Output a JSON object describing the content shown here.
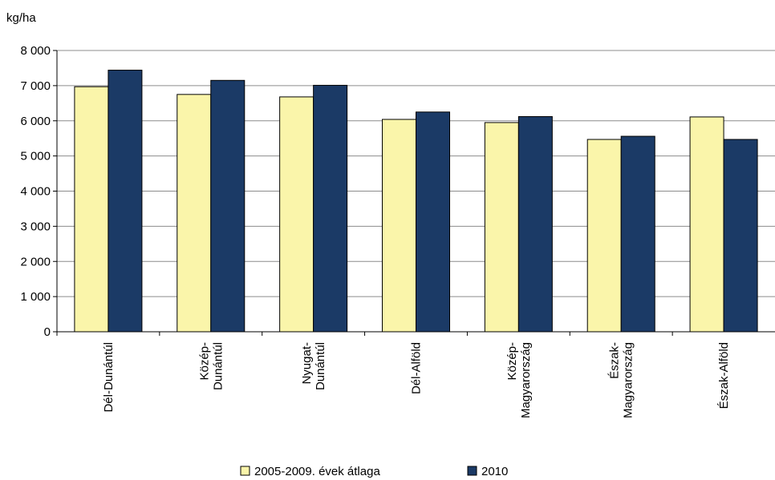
{
  "chart_data": {
    "type": "bar",
    "unit_label": "kg/ha",
    "categories": [
      [
        "Dél-Dunántúl"
      ],
      [
        "Közép-",
        "Dunántúl"
      ],
      [
        "Nyugat-",
        "Dunántúl"
      ],
      [
        "Dél-Alföld"
      ],
      [
        "Közép-",
        "Magyarország"
      ],
      [
        "Észak-",
        "Magyarország"
      ],
      [
        "Észak-Alföld"
      ]
    ],
    "series": [
      {
        "name": "2005-2009. évek átlaga",
        "color": "#FAF5AA",
        "values": [
          6970,
          6750,
          6680,
          6040,
          5950,
          5470,
          6110
        ]
      },
      {
        "name": "2010",
        "color": "#1B3A66",
        "values": [
          7440,
          7150,
          7010,
          6250,
          6120,
          5560,
          5470
        ]
      }
    ],
    "ylim": [
      0,
      8000
    ],
    "yticks": [
      0,
      1000,
      2000,
      3000,
      4000,
      5000,
      6000,
      7000,
      8000
    ],
    "ytick_labels": [
      "0",
      "1 000",
      "2 000",
      "3 000",
      "4 000",
      "5 000",
      "6 000",
      "7 000",
      "8 000"
    ],
    "grid": true,
    "legend_position": "bottom"
  }
}
